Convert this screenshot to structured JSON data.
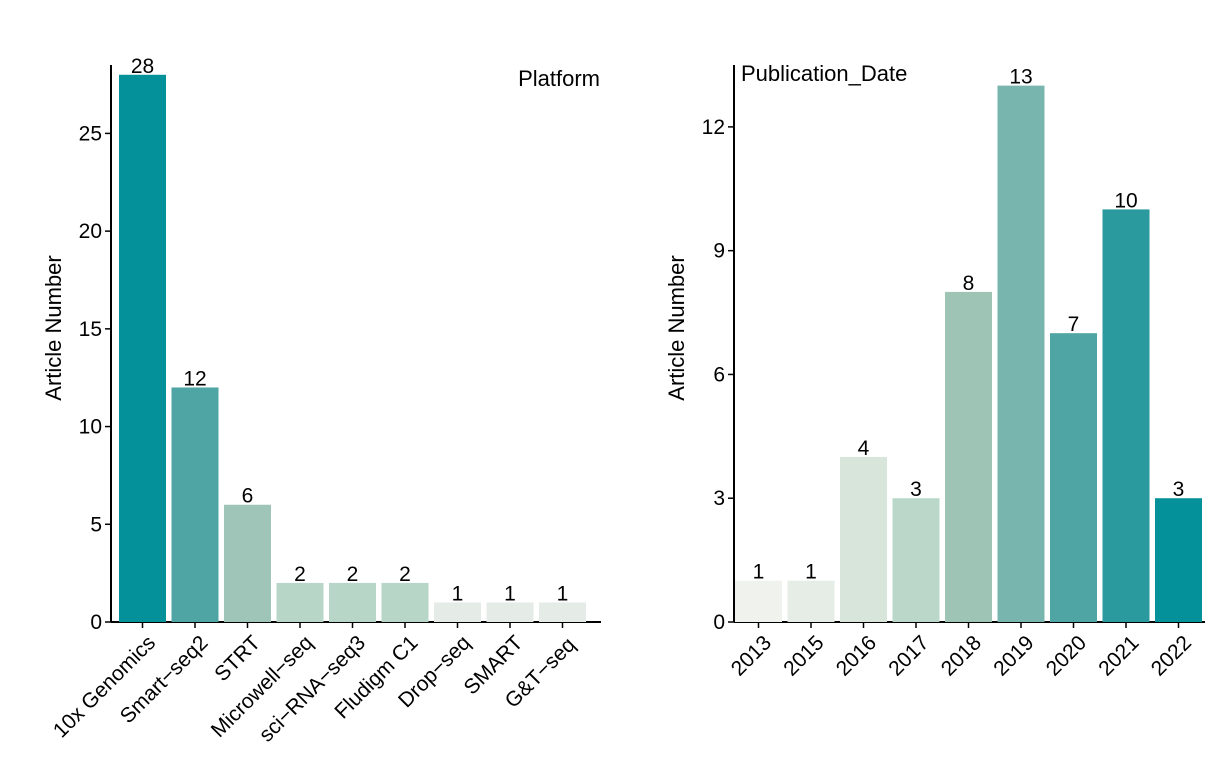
{
  "chart_data": [
    {
      "type": "bar",
      "title": "Platform",
      "ylabel": "Article Number",
      "xlabel": "",
      "categories": [
        "10x Genomics",
        "Smart−seq2",
        "STRT",
        "Microwell−seq",
        "sci−RNA−seq3",
        "Fludigm C1",
        "Drop−seq",
        "SMART",
        "G&T−seq"
      ],
      "values": [
        28,
        12,
        6,
        2,
        2,
        2,
        1,
        1,
        1
      ],
      "colors": [
        "#05919a",
        "#4ea5a4",
        "#9ec5b8",
        "#b8d6c8",
        "#b8d6c8",
        "#b8d6c8",
        "#e5ebe6",
        "#e5ebe6",
        "#e5ebe6"
      ],
      "ylim": [
        0,
        28.5
      ],
      "yticks": [
        0,
        5,
        10,
        15,
        20,
        25
      ],
      "grid": false
    },
    {
      "type": "bar",
      "title": "Publication_Date",
      "ylabel": "Article Number",
      "xlabel": "",
      "categories": [
        "2013",
        "2015",
        "2016",
        "2017",
        "2018",
        "2019",
        "2020",
        "2021",
        "2022"
      ],
      "values": [
        1,
        1,
        4,
        3,
        8,
        13,
        7,
        10,
        3
      ],
      "colors": [
        "#f0f2ee",
        "#e6ece6",
        "#d8e5da",
        "#bad7c9",
        "#9ec4b6",
        "#78b5ae",
        "#4ea5a4",
        "#2a9a9f",
        "#05919a"
      ],
      "ylim": [
        0,
        13.5
      ],
      "yticks": [
        0,
        3,
        6,
        9,
        12
      ],
      "ytick_labels": [
        "0",
        "3",
        "6",
        "9",
        "12"
      ],
      "grid": false
    }
  ]
}
